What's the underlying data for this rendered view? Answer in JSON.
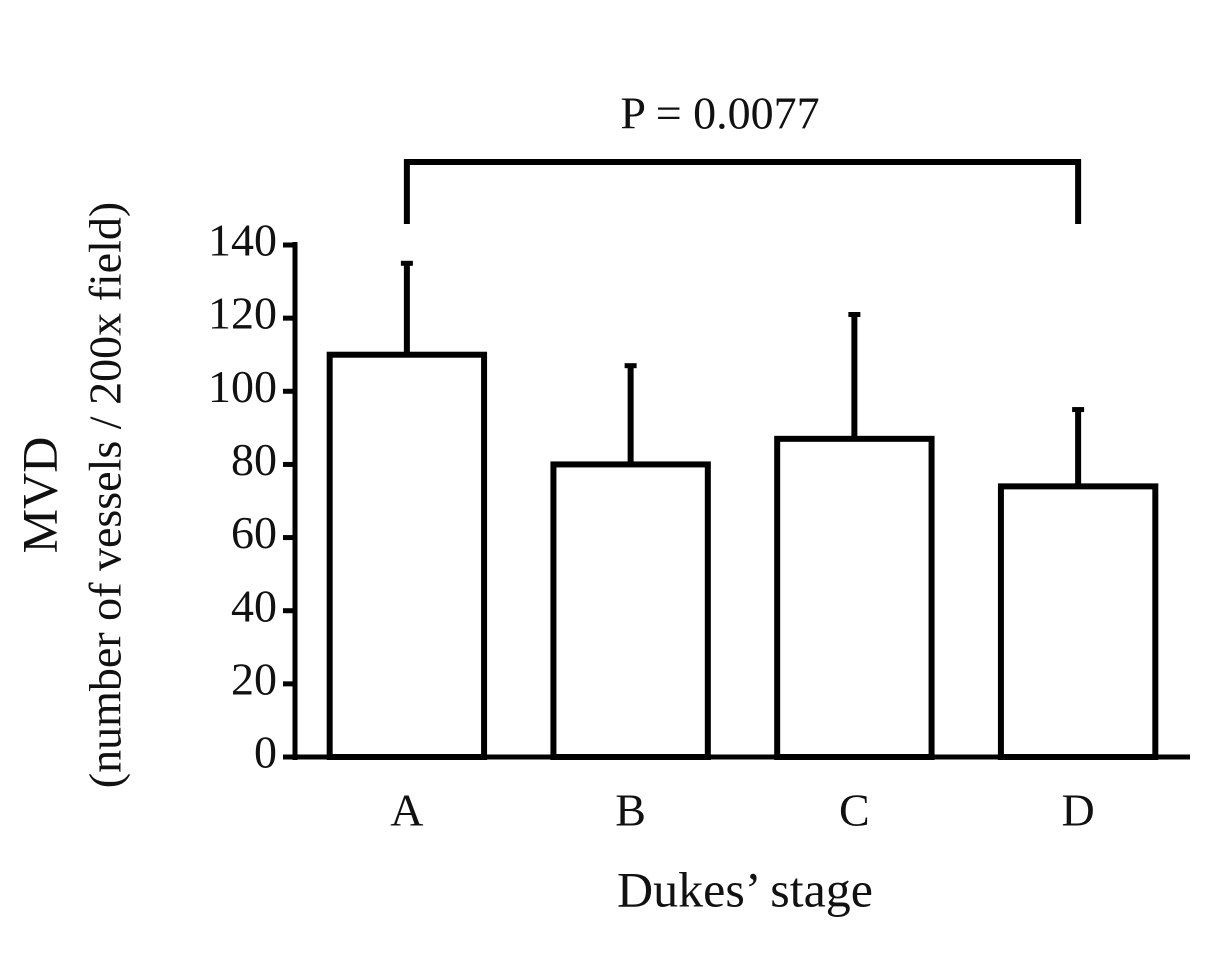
{
  "chart_data": {
    "type": "bar",
    "annotation": "P = 0.0077",
    "y_label": [
      "MVD",
      "(number of vessels / 200x field)"
    ],
    "x_label": "Dukes’ stage",
    "categories": [
      "A",
      "B",
      "C",
      "D"
    ],
    "values": [
      110,
      80,
      87,
      74
    ],
    "errors": [
      25,
      27,
      34,
      21
    ],
    "color": "#ffffff",
    "ylim": [
      0,
      140
    ],
    "yticks": [
      0,
      20,
      40,
      60,
      80,
      100,
      120,
      140
    ],
    "grid": false
  }
}
